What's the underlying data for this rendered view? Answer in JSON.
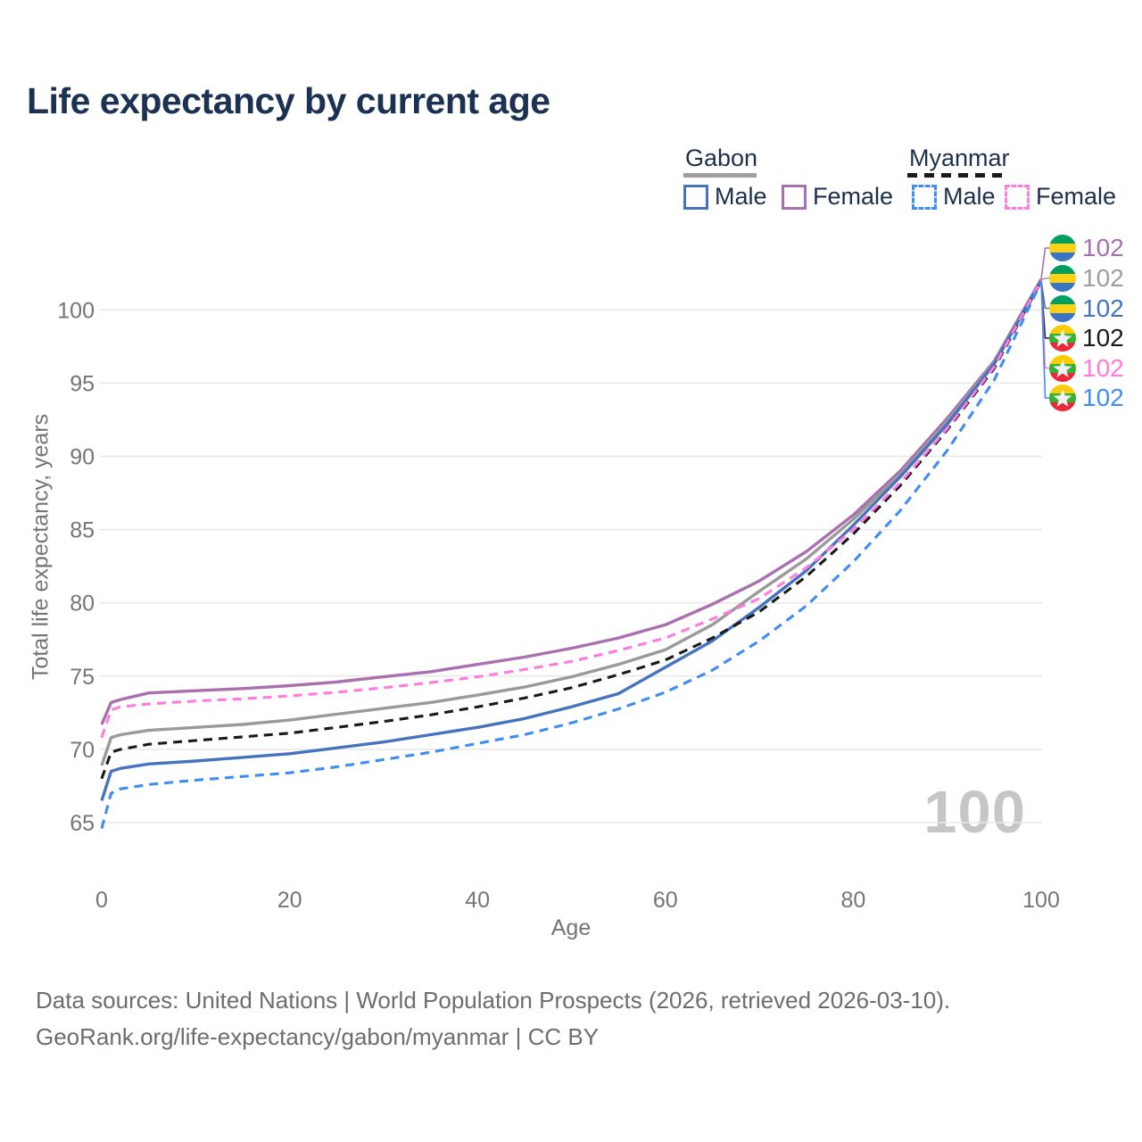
{
  "title": "Life expectancy by current age",
  "legend": {
    "groups": [
      {
        "label": "Gabon",
        "style": "solid",
        "color": "#9e9e9e"
      },
      {
        "label": "Myanmar",
        "style": "dashed",
        "color": "#1a1a1a"
      }
    ],
    "items": [
      {
        "label": "Male",
        "country": "Gabon",
        "color": "#4673bd",
        "dash": false
      },
      {
        "label": "Female",
        "country": "Gabon",
        "color": "#a96fae",
        "dash": false
      },
      {
        "label": "Male",
        "country": "Myanmar",
        "color": "#3f8df2",
        "dash": true
      },
      {
        "label": "Female",
        "country": "Myanmar",
        "color": "#ff7be0",
        "dash": true
      }
    ]
  },
  "end_labels": [
    {
      "country": "Gabon",
      "series": "Female",
      "value": "102",
      "color": "#a96fae"
    },
    {
      "country": "Gabon",
      "series": "Both sexes",
      "value": "102",
      "color": "#9e9e9e"
    },
    {
      "country": "Gabon",
      "series": "Male",
      "value": "102",
      "color": "#4673bd"
    },
    {
      "country": "Myanmar",
      "series": "Both sexes",
      "value": "102",
      "color": "#1a1a1a"
    },
    {
      "country": "Myanmar",
      "series": "Female",
      "value": "102",
      "color": "#ff7be0"
    },
    {
      "country": "Myanmar",
      "series": "Male",
      "value": "102",
      "color": "#3f8df2"
    }
  ],
  "watermark": "100",
  "footer": {
    "line1": "Data sources: United Nations | World Population Prospects (2026, retrieved 2026-03-10).",
    "line2": "GeoRank.org/life-expectancy/gabon/myanmar | CC BY"
  },
  "colors": {
    "title": "#1b3252",
    "legend_text": "#1e2f4d",
    "axis_text": "#757575",
    "grid": "#e8e8e8",
    "watermark": "#c6c6c6",
    "footer_text": "#6d6d6d"
  },
  "chart_data": {
    "type": "line",
    "title": "Life expectancy by current age",
    "xlabel": "Age",
    "ylabel": "Total life expectancy, years",
    "xlim": [
      0,
      100
    ],
    "ylim": [
      63.5,
      103
    ],
    "xticks": [
      0,
      20,
      40,
      60,
      80,
      100
    ],
    "yticks": [
      65,
      70,
      75,
      80,
      85,
      90,
      95,
      100
    ],
    "grid": "horizontal",
    "legend_position": "top-right",
    "ages": [
      0,
      1,
      2,
      5,
      10,
      15,
      20,
      25,
      30,
      35,
      40,
      45,
      50,
      55,
      60,
      65,
      70,
      75,
      80,
      85,
      90,
      95,
      100
    ],
    "series": [
      {
        "name": "Gabon Female",
        "country": "Gabon",
        "sex": "Female",
        "color": "#a96fae",
        "dash": "solid",
        "values": [
          71.7,
          73.2,
          73.4,
          73.85,
          74.0,
          74.15,
          74.35,
          74.6,
          74.95,
          75.3,
          75.8,
          76.3,
          76.9,
          77.6,
          78.5,
          79.9,
          81.5,
          83.5,
          86.0,
          89.0,
          92.6,
          96.5,
          102.1
        ]
      },
      {
        "name": "Gabon Both sexes",
        "country": "Gabon",
        "sex": "Both sexes",
        "color": "#9a9a9a",
        "dash": "solid",
        "values": [
          68.9,
          70.8,
          71.0,
          71.3,
          71.5,
          71.7,
          72.0,
          72.4,
          72.8,
          73.2,
          73.7,
          74.25,
          74.95,
          75.8,
          76.8,
          78.5,
          80.8,
          83.0,
          85.7,
          88.8,
          92.4,
          96.4,
          102.05
        ]
      },
      {
        "name": "Gabon Male",
        "country": "Gabon",
        "sex": "Male",
        "color": "#4673bd",
        "dash": "solid",
        "values": [
          66.5,
          68.5,
          68.7,
          69.0,
          69.2,
          69.45,
          69.7,
          70.1,
          70.5,
          71.0,
          71.5,
          72.1,
          72.9,
          73.8,
          75.6,
          77.4,
          79.7,
          82.2,
          85.3,
          88.6,
          92.2,
          96.3,
          102.0
        ]
      },
      {
        "name": "Myanmar Both sexes",
        "country": "Myanmar",
        "sex": "Both sexes",
        "color": "#1a1a1a",
        "dash": "dashed",
        "values": [
          68.0,
          69.8,
          70.0,
          70.35,
          70.6,
          70.85,
          71.1,
          71.5,
          71.9,
          72.35,
          72.9,
          73.5,
          74.2,
          75.1,
          76.1,
          77.6,
          79.4,
          81.8,
          84.7,
          88.0,
          91.8,
          96.0,
          101.95
        ]
      },
      {
        "name": "Myanmar Female",
        "country": "Myanmar",
        "sex": "Female",
        "color": "#ff7be0",
        "dash": "dashed",
        "values": [
          70.8,
          72.7,
          72.9,
          73.1,
          73.3,
          73.45,
          73.65,
          73.9,
          74.2,
          74.55,
          74.95,
          75.45,
          76.0,
          76.75,
          77.6,
          78.9,
          80.3,
          82.4,
          85.0,
          88.2,
          91.9,
          96.1,
          102.0
        ]
      },
      {
        "name": "Myanmar Male",
        "country": "Myanmar",
        "sex": "Male",
        "color": "#3f8df2",
        "dash": "dashed",
        "values": [
          64.6,
          67.0,
          67.3,
          67.6,
          67.9,
          68.15,
          68.4,
          68.8,
          69.3,
          69.8,
          70.4,
          71.0,
          71.8,
          72.75,
          73.9,
          75.4,
          77.4,
          79.8,
          82.8,
          86.3,
          90.4,
          95.2,
          101.9
        ]
      }
    ]
  }
}
